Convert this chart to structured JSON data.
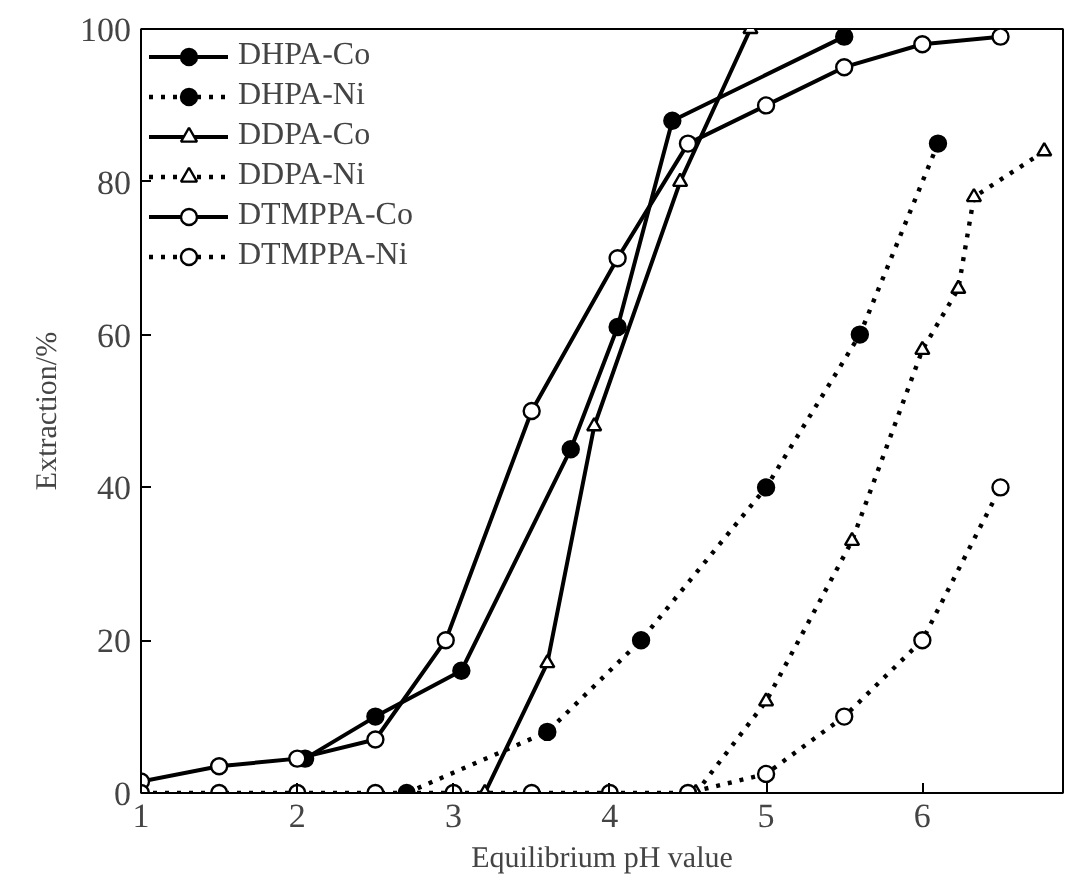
{
  "chart_data": {
    "type": "line",
    "xlabel": "Equilibrium pH value",
    "ylabel": "Extraction/%",
    "xlim": [
      1,
      6.9
    ],
    "ylim": [
      0,
      100
    ],
    "xticks": [
      1,
      2,
      3,
      4,
      5,
      6
    ],
    "yticks": [
      0,
      20,
      40,
      60,
      80,
      100
    ],
    "grid": false,
    "legend": "top left",
    "series": [
      {
        "name": "DHPA-Co",
        "color": "#000000",
        "colors": [
          "#000000",
          "#000000",
          "#000000",
          "#000000",
          "#000000",
          "#000000",
          "#000000"
        ],
        "marker": "circle",
        "line_style": "solid",
        "x": [
          2.05,
          2.5,
          3.05,
          3.75,
          4.05,
          4.4,
          5.5
        ],
        "values": [
          4.5,
          10,
          16,
          45,
          61,
          88,
          99
        ]
      },
      {
        "name": "DHPA-Ni",
        "color": "#000000",
        "colors": [
          "#000000",
          "#000000",
          "#000000",
          "#000000",
          "#000000",
          "#000000"
        ],
        "marker": "circle",
        "line_style": "dotted",
        "x": [
          2.7,
          3.6,
          4.2,
          5,
          5.6,
          6.1
        ],
        "values": [
          0,
          8,
          20,
          40,
          60,
          85
        ]
      },
      {
        "name": "DDPA-Co",
        "color": "#000000",
        "marker": "triangle",
        "line_style": "solid",
        "x": [
          3.2,
          3.6,
          3.9,
          4.45,
          4.9
        ],
        "values": [
          0,
          17,
          48,
          80,
          100
        ]
      },
      {
        "name": "DDPA-Ni",
        "color": "#000000",
        "marker": "triangle",
        "line_style": "dotted",
        "x": [
          4.55,
          5,
          5.55,
          6.0,
          6.23,
          6.33,
          6.78
        ],
        "values": [
          0,
          12,
          33,
          58,
          66,
          78,
          84
        ]
      },
      {
        "name": "DTMPPA-Co",
        "color": "#000000",
        "marker": "circle",
        "line_style": "solid",
        "x": [
          1,
          1.5,
          2,
          2.5,
          2.95,
          3.5,
          4.05,
          4.5,
          5,
          5.5,
          6,
          6.5
        ],
        "values": [
          1.5,
          3.5,
          4.5,
          7,
          20,
          50,
          70,
          85,
          90,
          95,
          98,
          99
        ]
      },
      {
        "name": "DTMPPA-Ni",
        "color": "#000000",
        "marker": "circle",
        "line_style": "dotted",
        "x": [
          1,
          1.5,
          2,
          2.5,
          3,
          3.5,
          4,
          4.5,
          5,
          5.5,
          6,
          6.5
        ],
        "values": [
          0,
          0,
          0,
          0,
          0,
          0,
          0,
          0,
          2.5,
          10,
          20,
          40
        ]
      }
    ]
  }
}
